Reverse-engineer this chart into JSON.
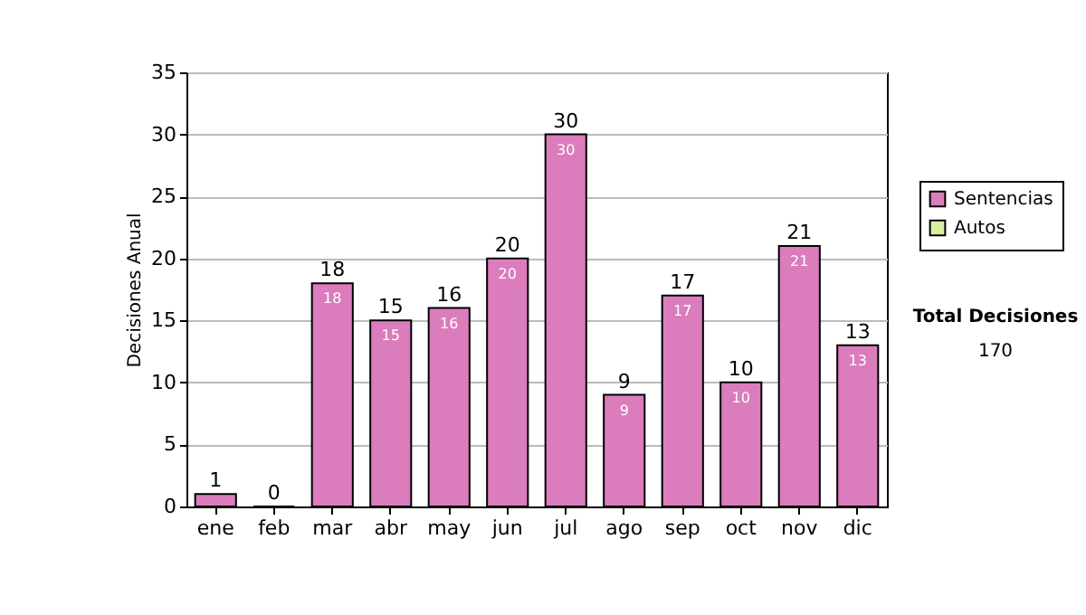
{
  "chart_data": {
    "type": "bar",
    "ylabel": "Decisiones Anual",
    "categories": [
      "ene",
      "feb",
      "mar",
      "abr",
      "may",
      "jun",
      "jul",
      "ago",
      "sep",
      "oct",
      "nov",
      "dic"
    ],
    "series": [
      {
        "name": "Sentencias",
        "color": "#db7cbd",
        "values": [
          1,
          0,
          18,
          15,
          16,
          20,
          30,
          9,
          17,
          10,
          21,
          13
        ],
        "value_labels": [
          null,
          null,
          "18",
          "15",
          "16",
          "20",
          "30",
          "9",
          "17",
          "10",
          "21",
          "13"
        ]
      },
      {
        "name": "Autos",
        "color": "#d9f0a3",
        "values": [
          0,
          0,
          0,
          0,
          0,
          0,
          0,
          0,
          0,
          0,
          0,
          0
        ]
      }
    ],
    "totals": [
      "1",
      "0",
      "18",
      "15",
      "16",
      "20",
      "30",
      "9",
      "17",
      "10",
      "21",
      "13"
    ],
    "ylim": [
      0,
      35
    ],
    "yticks": [
      0,
      5,
      10,
      15,
      20,
      25,
      30,
      35
    ],
    "grid": "y",
    "legend": "right",
    "annotations": [
      "Total Decisiones",
      "170"
    ]
  }
}
